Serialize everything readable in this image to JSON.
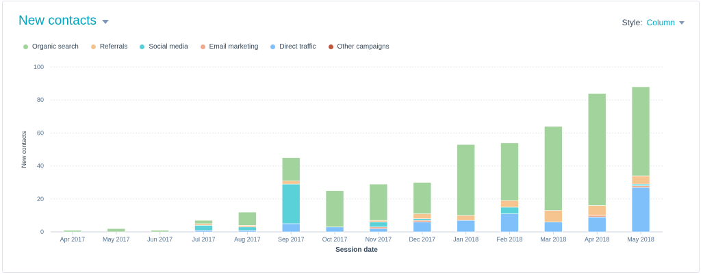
{
  "header": {
    "title": "New contacts",
    "style_label": "Style:",
    "style_value": "Column"
  },
  "colors": {
    "Organic search": "#a2d39c",
    "Referrals": "#f5c48f",
    "Social media": "#5ad0d8",
    "Email marketing": "#f2aa8e",
    "Direct traffic": "#80c0fa",
    "Other campaigns": "#c0563b"
  },
  "chart_data": {
    "type": "bar",
    "stacked": true,
    "title": "",
    "xlabel": "Session date",
    "ylabel": "New contacts",
    "ylim": [
      0,
      100
    ],
    "yticks": [
      0,
      20,
      40,
      60,
      80,
      100
    ],
    "grid": true,
    "legend_position": "top-left",
    "categories": [
      "Apr 2017",
      "May 2017",
      "Jun 2017",
      "Jul 2017",
      "Aug 2017",
      "Sep 2017",
      "Oct 2017",
      "Nov 2017",
      "Dec 2017",
      "Jan 2018",
      "Feb 2018",
      "Mar 2018",
      "Apr 2018",
      "May 2018"
    ],
    "series": [
      {
        "name": "Direct traffic",
        "values": [
          0,
          0,
          0,
          1,
          1,
          5,
          3,
          2,
          6,
          7,
          11,
          6,
          9,
          27
        ]
      },
      {
        "name": "Other campaigns",
        "values": [
          0,
          0,
          0,
          0,
          0,
          0,
          0,
          0,
          0,
          0,
          0,
          0,
          0,
          0
        ]
      },
      {
        "name": "Email marketing",
        "values": [
          0,
          0,
          0,
          0,
          0,
          0,
          0,
          1,
          1,
          0,
          0,
          0,
          1,
          1
        ]
      },
      {
        "name": "Social media",
        "values": [
          0,
          0,
          0,
          3,
          2,
          24,
          0,
          3,
          1,
          0,
          4,
          0,
          0,
          1
        ]
      },
      {
        "name": "Referrals",
        "values": [
          0,
          0,
          0,
          1,
          1,
          2,
          0,
          1,
          3,
          3,
          4,
          7,
          6,
          5
        ]
      },
      {
        "name": "Organic search",
        "values": [
          1,
          2,
          1,
          2,
          8,
          14,
          22,
          22,
          19,
          43,
          35,
          51,
          68,
          54
        ]
      }
    ],
    "legend": [
      "Organic search",
      "Referrals",
      "Social media",
      "Email marketing",
      "Direct traffic",
      "Other campaigns"
    ]
  }
}
